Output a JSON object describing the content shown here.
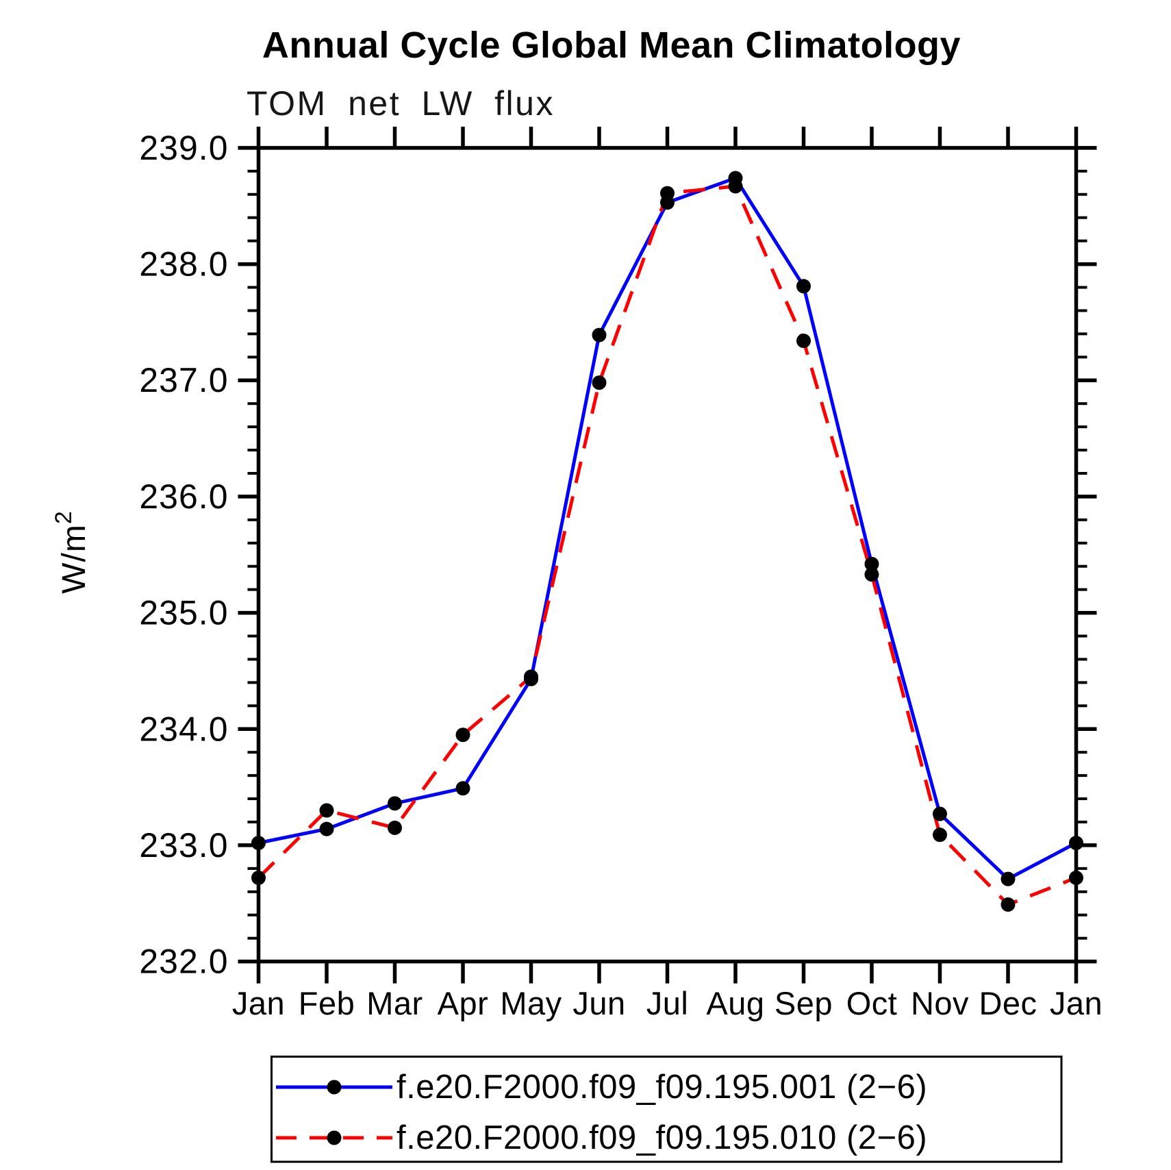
{
  "chart_data": {
    "type": "line",
    "title": "Annual Cycle Global Mean Climatology",
    "subtitle": "TOM net LW flux",
    "ylabel_base": "W/m",
    "ylabel_sup": "2",
    "x_categories": [
      "Jan",
      "Feb",
      "Mar",
      "Apr",
      "May",
      "Jun",
      "Jul",
      "Aug",
      "Sep",
      "Oct",
      "Nov",
      "Dec",
      "Jan"
    ],
    "y_axis": {
      "min": 232.0,
      "max": 239.0,
      "major_tick_step": 1.0,
      "minor_tick_step": 0.2,
      "tick_labels": [
        "232.0",
        "233.0",
        "234.0",
        "235.0",
        "236.0",
        "237.0",
        "238.0",
        "239.0"
      ]
    },
    "grid": false,
    "legend_position": "bottom",
    "series": [
      {
        "name": "f.e20.F2000.f09_f09.195.001 (2−6)",
        "color": "#0000ff",
        "line_style": "solid",
        "marker": "filled-circle",
        "marker_color": "#000000",
        "values": [
          233.02,
          233.14,
          233.36,
          233.49,
          234.43,
          237.39,
          238.53,
          238.74,
          237.81,
          235.42,
          233.27,
          232.71,
          233.02
        ]
      },
      {
        "name": "f.e20.F2000.f09_f09.195.010 (2−6)",
        "color": "#ff0000",
        "line_style": "dashed",
        "marker": "filled-circle",
        "marker_color": "#000000",
        "values": [
          232.72,
          233.3,
          233.15,
          233.95,
          234.45,
          236.98,
          238.61,
          238.67,
          237.34,
          235.33,
          233.09,
          232.49,
          232.72
        ]
      }
    ]
  }
}
